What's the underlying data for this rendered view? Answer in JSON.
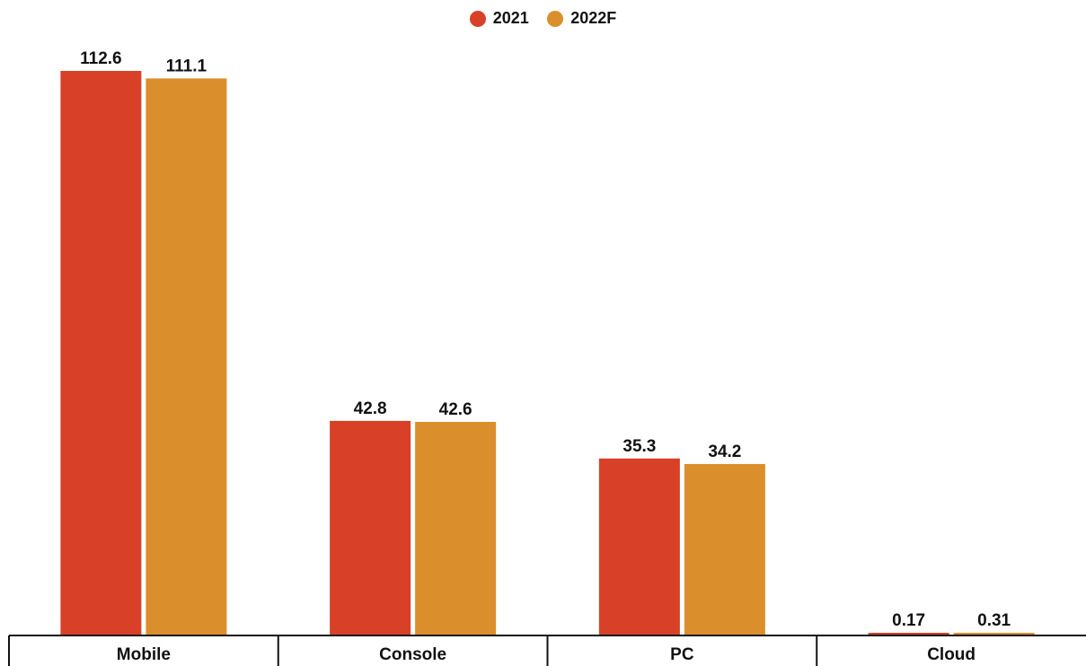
{
  "chart_data": {
    "type": "bar",
    "categories": [
      "Mobile",
      "Console",
      "PC",
      "Cloud"
    ],
    "series": [
      {
        "name": "2021",
        "color": "#D84127",
        "values": [
          112.6,
          42.8,
          35.3,
          0.17
        ],
        "labels": [
          "112.6",
          "42.8",
          "35.3",
          "0.17"
        ]
      },
      {
        "name": "2022F",
        "color": "#DA8F2C",
        "values": [
          111.1,
          42.6,
          34.2,
          0.31
        ],
        "labels": [
          "111.1",
          "42.6",
          "34.2",
          "0.31"
        ]
      }
    ],
    "title": "",
    "xlabel": "",
    "ylabel": "",
    "ylim": [
      0,
      112.6
    ],
    "legend": "top-center",
    "grid": false
  }
}
